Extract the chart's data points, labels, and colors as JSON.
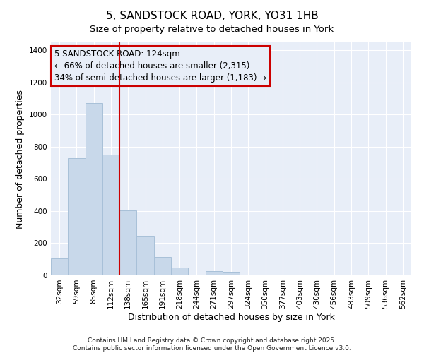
{
  "title": "5, SANDSTOCK ROAD, YORK, YO31 1HB",
  "subtitle": "Size of property relative to detached houses in York",
  "xlabel": "Distribution of detached houses by size in York",
  "ylabel": "Number of detached properties",
  "bar_color": "#c8d8ea",
  "bar_edge_color": "#a8c0d8",
  "categories": [
    "32sqm",
    "59sqm",
    "85sqm",
    "112sqm",
    "138sqm",
    "165sqm",
    "191sqm",
    "218sqm",
    "244sqm",
    "271sqm",
    "297sqm",
    "324sqm",
    "350sqm",
    "377sqm",
    "403sqm",
    "430sqm",
    "456sqm",
    "483sqm",
    "509sqm",
    "536sqm",
    "562sqm"
  ],
  "values": [
    107,
    730,
    1070,
    750,
    405,
    245,
    113,
    50,
    0,
    27,
    22,
    0,
    0,
    0,
    0,
    0,
    0,
    0,
    0,
    0,
    0
  ],
  "ylim": [
    0,
    1450
  ],
  "yticks": [
    0,
    200,
    400,
    600,
    800,
    1000,
    1200,
    1400
  ],
  "vline_x": 3.5,
  "vline_color": "#cc0000",
  "annotation_lines": [
    "5 SANDSTOCK ROAD: 124sqm",
    "← 66% of detached houses are smaller (2,315)",
    "34% of semi-detached houses are larger (1,183) →"
  ],
  "annotation_fontsize": 8.5,
  "footer_lines": [
    "Contains HM Land Registry data © Crown copyright and database right 2025.",
    "Contains public sector information licensed under the Open Government Licence v3.0."
  ],
  "title_fontsize": 11,
  "subtitle_fontsize": 9.5,
  "axis_label_fontsize": 9,
  "tick_fontsize": 7.5,
  "background_color": "#ffffff",
  "plot_bg_color": "#e8eef8",
  "grid_color": "#ffffff"
}
